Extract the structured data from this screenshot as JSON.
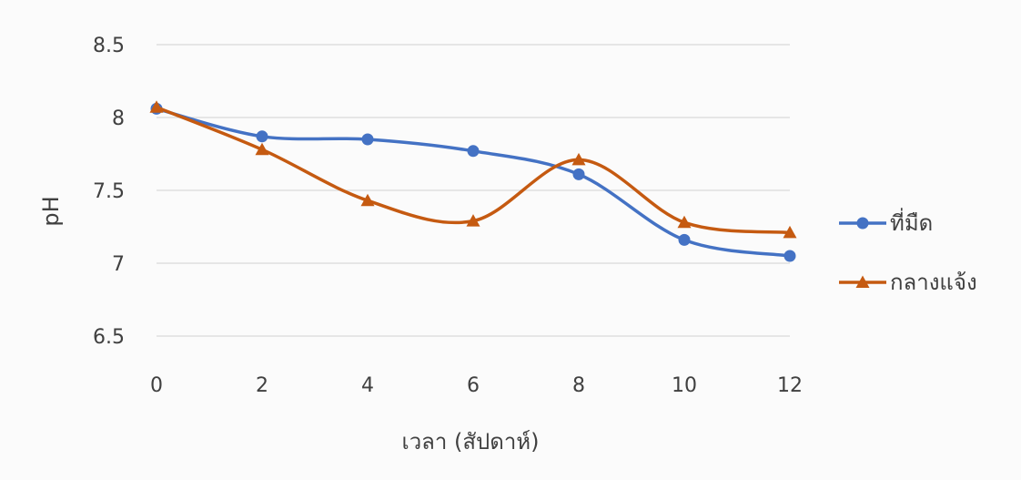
{
  "chart_data": {
    "type": "line",
    "xlabel": "เวลา (สัปดาห์)",
    "ylabel": "pH",
    "x": [
      0,
      2,
      4,
      6,
      8,
      10,
      12
    ],
    "x_tick_labels": [
      "0",
      "2",
      "4",
      "6",
      "8",
      "10",
      "12"
    ],
    "y_tick_labels": [
      "6.5",
      "7",
      "7.5",
      "8",
      "8.5"
    ],
    "ylim": [
      6.5,
      8.5
    ],
    "grid": true,
    "smooth": true,
    "legend_position": "right",
    "series": [
      {
        "name": "ที่มืด",
        "values": [
          8.06,
          7.87,
          7.85,
          7.77,
          7.61,
          7.16,
          7.05
        ],
        "color": "#4472c4",
        "marker": "circle"
      },
      {
        "name": "กลางแจ้ง",
        "values": [
          8.07,
          7.78,
          7.43,
          7.29,
          7.71,
          7.28,
          7.21
        ],
        "color": "#c55a11",
        "marker": "triangle"
      }
    ]
  }
}
